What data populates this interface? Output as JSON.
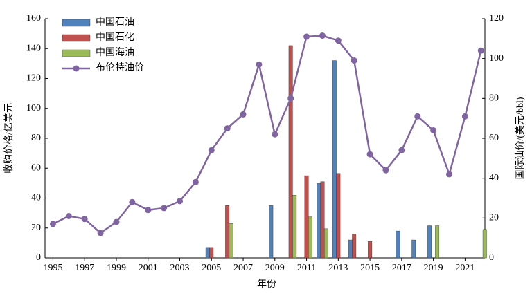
{
  "chart_data": {
    "type": "bar-line",
    "x": [
      1995,
      1996,
      1997,
      1998,
      1999,
      2000,
      2001,
      2002,
      2003,
      2004,
      2005,
      2006,
      2007,
      2008,
      2009,
      2010,
      2011,
      2012,
      2013,
      2014,
      2015,
      2016,
      2017,
      2018,
      2019,
      2020,
      2021,
      2022
    ],
    "xlim": [
      1994.5,
      2022.25
    ],
    "xticks": [
      1995,
      1997,
      1999,
      2001,
      2003,
      2005,
      2007,
      2009,
      2011,
      2013,
      2015,
      2017,
      2019,
      2021
    ],
    "x_label": "年份",
    "y_label": "收购价格/亿美元",
    "y2_label": "国际油价/(美元/bbl)",
    "ylim": [
      0,
      160
    ],
    "yticks": [
      0,
      20,
      40,
      60,
      80,
      100,
      120,
      140,
      160
    ],
    "y2lim": [
      0,
      120
    ],
    "y2ticks": [
      0,
      20,
      40,
      60,
      80,
      100,
      120
    ],
    "legend": "upper-left",
    "series": [
      {
        "name": "中国石油",
        "color": "#4f81bd",
        "kind": "bar",
        "values": [
          null,
          null,
          null,
          null,
          null,
          null,
          null,
          null,
          null,
          null,
          7,
          null,
          null,
          null,
          35,
          null,
          null,
          50,
          132,
          12,
          null,
          null,
          18,
          12,
          21.5,
          null,
          null,
          null
        ]
      },
      {
        "name": "中国石化",
        "color": "#c0504d",
        "kind": "bar",
        "values": [
          null,
          null,
          null,
          null,
          null,
          null,
          null,
          null,
          null,
          null,
          7,
          35,
          null,
          null,
          null,
          142,
          55,
          51,
          56.5,
          16,
          11,
          null,
          null,
          null,
          null,
          null,
          null,
          null
        ]
      },
      {
        "name": "中国海油",
        "color": "#9bbb59",
        "kind": "bar",
        "values": [
          null,
          null,
          null,
          null,
          null,
          null,
          null,
          null,
          null,
          null,
          null,
          23,
          null,
          null,
          null,
          42,
          27.5,
          19.5,
          null,
          null,
          null,
          null,
          null,
          null,
          21.5,
          null,
          null,
          19
        ]
      },
      {
        "name": "布伦特油价",
        "color": "#8064a2",
        "kind": "line",
        "axis": "y2",
        "values": [
          17,
          21,
          19.5,
          12.5,
          18,
          28,
          24,
          25,
          28.5,
          38,
          54,
          65,
          72,
          97,
          62,
          80,
          111,
          111.5,
          109,
          99,
          52,
          44,
          54,
          71,
          64,
          42,
          71,
          104
        ]
      }
    ]
  }
}
